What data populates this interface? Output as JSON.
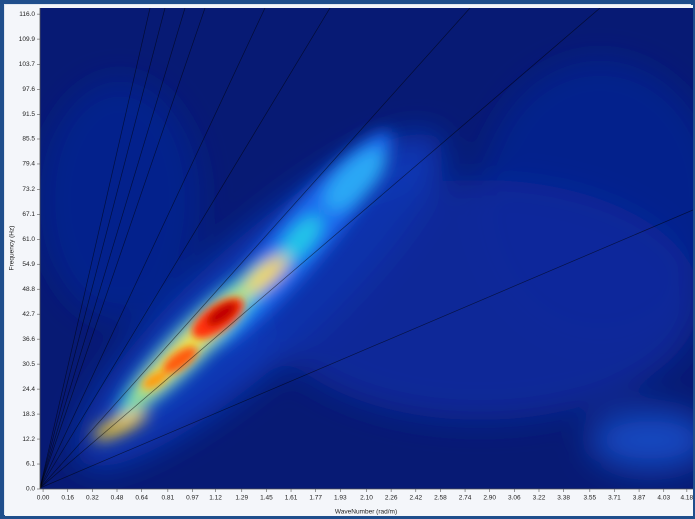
{
  "chart_data": {
    "type": "heatmap",
    "y_label": "Frequency (Hz)",
    "x_label": "WaveNumber (rad/m)",
    "xlim": [
      -0.02,
      4.22
    ],
    "ylim": [
      0,
      117.5
    ],
    "xticks": [
      {
        "value": 0,
        "label": "0.00"
      },
      0.16,
      0.32,
      0.48,
      0.64,
      0.81,
      0.97,
      1.12,
      1.29,
      1.45,
      1.61,
      1.77,
      1.93,
      {
        "value": 2.1,
        "label": "2.10"
      },
      2.26,
      2.42,
      2.58,
      2.74,
      {
        "value": 2.9,
        "label": "2.90"
      },
      3.06,
      3.22,
      3.38,
      3.55,
      3.71,
      3.87,
      4.03,
      4.18
    ],
    "yticks": [
      {
        "value": 0,
        "label": "0.0"
      },
      6.1,
      12.2,
      18.3,
      24.4,
      30.5,
      36.6,
      42.7,
      48.8,
      54.9,
      {
        "value": 61,
        "label": "61.0"
      },
      67.1,
      73.2,
      79.4,
      85.5,
      91.5,
      97.6,
      103.7,
      109.9,
      {
        "value": 116,
        "label": "116.0"
      }
    ]
  }
}
